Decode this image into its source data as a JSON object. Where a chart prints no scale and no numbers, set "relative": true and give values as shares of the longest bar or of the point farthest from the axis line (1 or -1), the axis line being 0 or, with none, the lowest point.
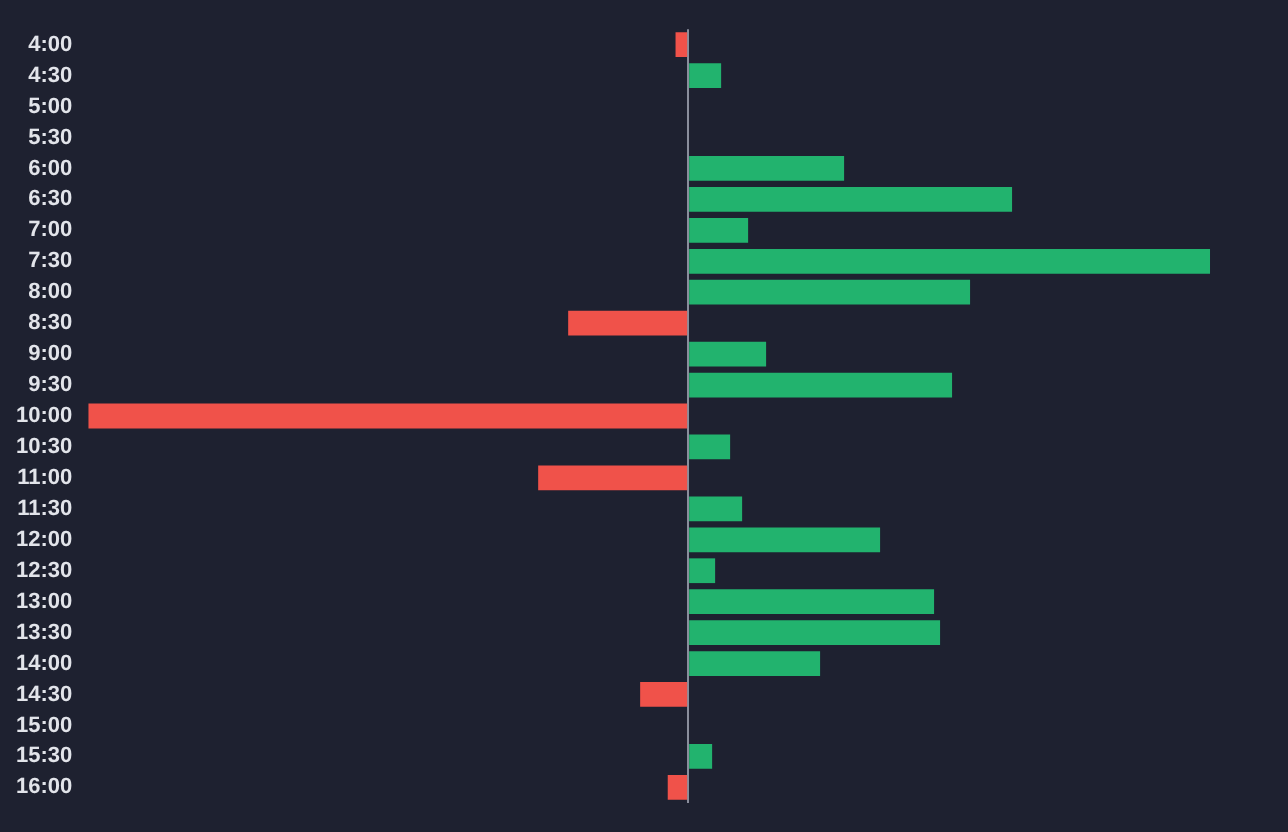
{
  "chart_data": {
    "type": "bar",
    "orientation": "horizontal",
    "relative": true,
    "legend": false,
    "categories": [
      "4:00",
      "4:30",
      "5:00",
      "5:30",
      "6:00",
      "6:30",
      "7:00",
      "7:30",
      "8:00",
      "8:30",
      "9:00",
      "9:30",
      "10:00",
      "10:30",
      "11:00",
      "11:30",
      "12:00",
      "12:30",
      "13:00",
      "13:30",
      "14:00",
      "14:30",
      "15:00",
      "15:30",
      "16:00"
    ],
    "values": [
      -0.021,
      0.055,
      0,
      0,
      0.26,
      0.54,
      0.1,
      0.87,
      0.47,
      -0.2,
      0.13,
      0.44,
      -1,
      0.07,
      -0.25,
      0.09,
      0.32,
      0.045,
      0.41,
      0.42,
      0.22,
      -0.08,
      0,
      0.04,
      -0.034
    ],
    "colors": [
      "#f0524a",
      "#22b36e",
      "#22b36e",
      "#22b36e",
      "#22b36e",
      "#22b36e",
      "#22b36e",
      "#22b36e",
      "#22b36e",
      "#f0524a",
      "#22b36e",
      "#22b36e",
      "#f0524a",
      "#22b36e",
      "#f0524a",
      "#22b36e",
      "#22b36e",
      "#22b36e",
      "#22b36e",
      "#22b36e",
      "#22b36e",
      "#f0524a",
      "#22b36e",
      "#22b36e",
      "#f0524a"
    ]
  }
}
